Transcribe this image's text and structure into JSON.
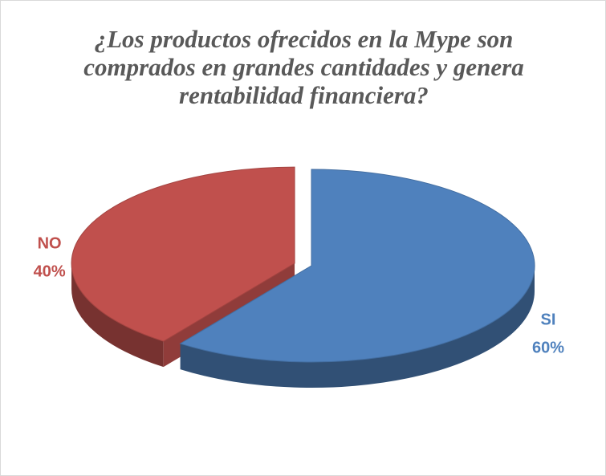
{
  "chart_data": {
    "type": "pie",
    "title": "¿Los productos ofrecidos en la Mype son comprados en grandes cantidades y genera rentabilidad financiera?",
    "categories": [
      "SI",
      "NO"
    ],
    "values": [
      60,
      40
    ],
    "value_labels": [
      "60%",
      "40%"
    ],
    "colors": [
      "#4f81bd",
      "#c0504d"
    ],
    "three_d": true
  }
}
